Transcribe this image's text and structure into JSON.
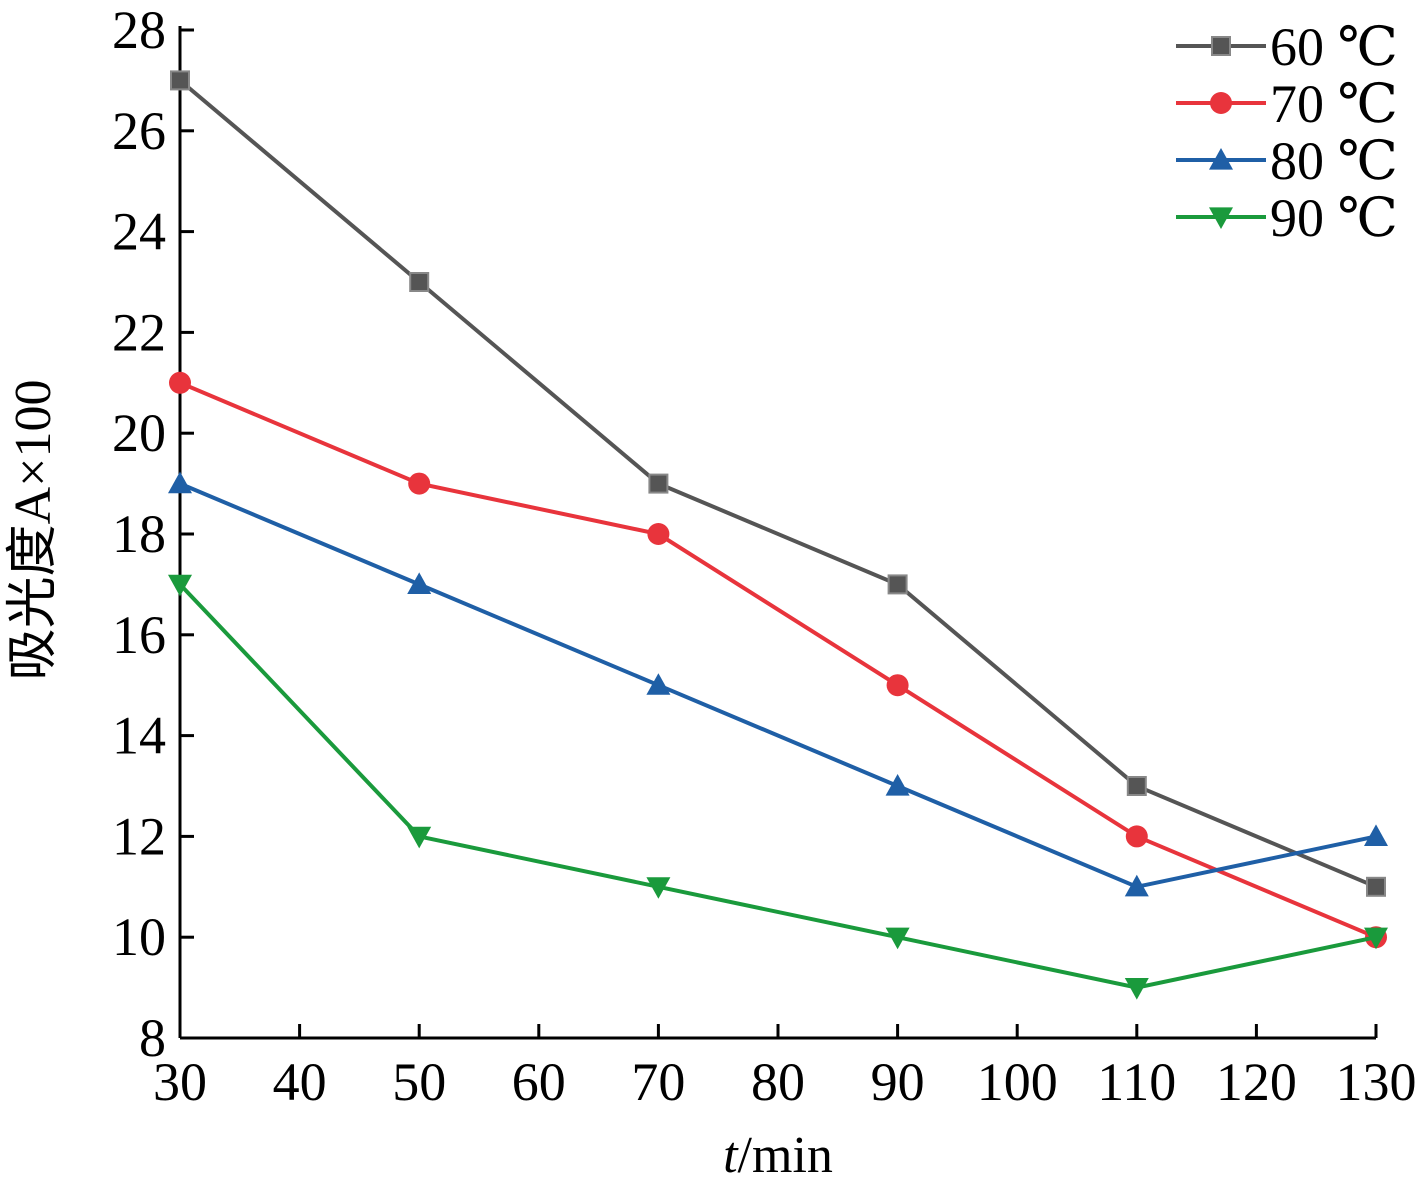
{
  "chart_data": {
    "type": "line",
    "title": "",
    "xlabel_italic": "t",
    "xlabel_rest": "/min",
    "ylabel": "吸光度A×100",
    "xlim": [
      30,
      130
    ],
    "ylim": [
      8,
      28
    ],
    "x_ticks": [
      30,
      40,
      50,
      60,
      70,
      80,
      90,
      100,
      110,
      120,
      130
    ],
    "y_ticks": [
      8,
      10,
      12,
      14,
      16,
      18,
      20,
      22,
      24,
      26,
      28
    ],
    "x": [
      30,
      50,
      70,
      90,
      110,
      130
    ],
    "grid": false,
    "legend_position": "top-right",
    "series": [
      {
        "name": "60 ℃",
        "marker": "square",
        "color": "#555555",
        "values": [
          27,
          23,
          19,
          17,
          13,
          11
        ]
      },
      {
        "name": "70 ℃",
        "marker": "circle",
        "color": "#e8343c",
        "values": [
          21,
          19,
          18,
          15,
          12,
          10
        ]
      },
      {
        "name": "80 ℃",
        "marker": "triangle-up",
        "color": "#1f5fa6",
        "values": [
          19,
          17,
          15,
          13,
          11,
          12
        ]
      },
      {
        "name": "90 ℃",
        "marker": "triangle-down",
        "color": "#1a9a3c",
        "values": [
          17,
          12,
          11,
          10,
          9,
          10
        ]
      }
    ]
  }
}
